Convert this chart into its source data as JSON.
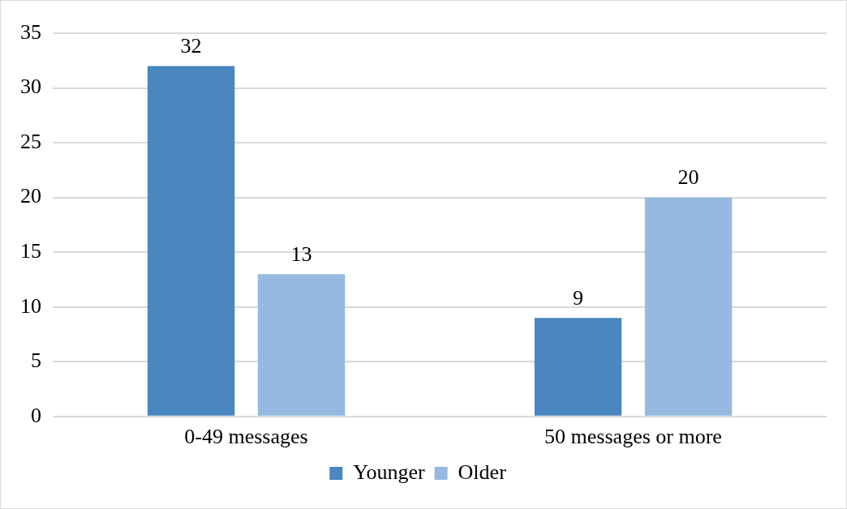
{
  "chart_data": {
    "type": "bar",
    "categories": [
      "0-49 messages",
      "50 messages or more"
    ],
    "series": [
      {
        "name": "Younger",
        "color": "#4a86c0",
        "values": [
          32,
          9
        ]
      },
      {
        "name": "Older",
        "color": "#95b9e0",
        "values": [
          13,
          20
        ]
      }
    ],
    "ylim": [
      0,
      35
    ],
    "yticks": [
      0,
      5,
      10,
      15,
      20,
      25,
      30,
      35
    ],
    "grid": "y",
    "legend": "bottom",
    "data_labels": true
  }
}
